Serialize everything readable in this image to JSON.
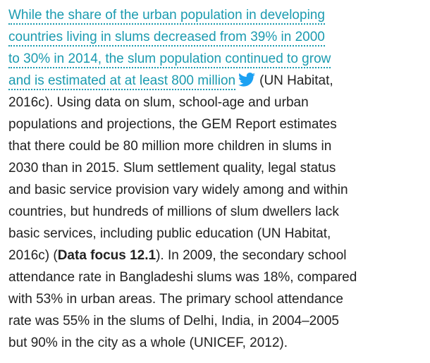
{
  "paragraph": {
    "highlight_lines": [
      "While the share of the urban population in developing",
      "countries living in slums decreased from 39% in 2000",
      "to 30% in 2014, the slum population continued to grow",
      "and is estimated at at least 800 million"
    ],
    "after_highlight": "(UN Habitat,",
    "lines_before_bold": [
      "2016c). Using data on slum, school-age and urban",
      "populations and projections, the GEM Report estimates",
      "that there could be 80 million more children in slums in",
      "2030 than in 2015. Slum settlement quality, legal status",
      "and basic service provision vary widely among and within",
      "countries, but hundreds of millions of slum dwellers lack",
      "basic services, including public education (UN Habitat,"
    ],
    "before_bold": "2016c) (",
    "bold": "Data focus 12.1",
    "after_bold": "). In 2009, the secondary school",
    "lines_after_bold": [
      "attendance rate in Bangladeshi slums was 18%, compared",
      "with 53% in urban areas. The primary school attendance",
      "rate was 55% in the slums of Delhi, India, in 2004–2005",
      "but 90% in the city as a whole (UNICEF, 2012)."
    ]
  }
}
